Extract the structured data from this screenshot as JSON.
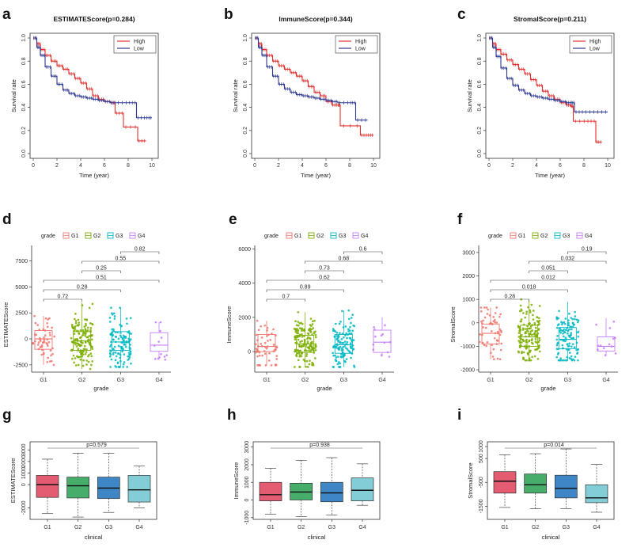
{
  "colors": {
    "high": "#e0312f",
    "low": "#2f3a93",
    "G1": "#f0766e",
    "G2": "#7cae00",
    "G3": "#00b8c4",
    "G4": "#c77cff",
    "g_G1": "#e35c72",
    "g_G2": "#46ad6a",
    "g_G3": "#3f86c6",
    "g_G4": "#82cdd6"
  },
  "chart_data": [
    {
      "panel": "a",
      "type": "line",
      "title": "ESTIMATEScore(p=0.284)",
      "xlabel": "Time (year)",
      "ylabel": "Survival rate",
      "xlim": [
        0,
        10
      ],
      "ylim": [
        0,
        1.0
      ],
      "xticks": [
        "0",
        "2",
        "4",
        "6",
        "8",
        "10"
      ],
      "yticks": [
        "0.0",
        "0.2",
        "0.4",
        "0.6",
        "0.8",
        "1.0"
      ],
      "legend": [
        "High",
        "Low"
      ],
      "series": [
        {
          "name": "High",
          "x": [
            0,
            0.3,
            0.6,
            1,
            1.5,
            2,
            2.5,
            3,
            3.5,
            4,
            4.5,
            5,
            5.5,
            6,
            6.5,
            6.9,
            7.6,
            8.8,
            9.5
          ],
          "y": [
            1,
            0.95,
            0.9,
            0.85,
            0.8,
            0.76,
            0.73,
            0.69,
            0.65,
            0.61,
            0.56,
            0.5,
            0.47,
            0.45,
            0.44,
            0.35,
            0.23,
            0.11,
            0.11
          ]
        },
        {
          "name": "Low",
          "x": [
            0,
            0.3,
            0.6,
            1,
            1.5,
            2,
            2.5,
            3,
            3.5,
            4,
            4.5,
            5,
            5.5,
            6,
            6.5,
            7,
            8,
            8.7,
            9.5,
            10
          ],
          "y": [
            1,
            0.92,
            0.85,
            0.75,
            0.67,
            0.6,
            0.55,
            0.52,
            0.5,
            0.49,
            0.48,
            0.47,
            0.46,
            0.45,
            0.44,
            0.44,
            0.44,
            0.31,
            0.31,
            0.31
          ]
        }
      ]
    },
    {
      "panel": "b",
      "type": "line",
      "title": "ImmuneScore(p=0.344)",
      "xlabel": "Time (year)",
      "ylabel": "Survival rate",
      "xlim": [
        0,
        10
      ],
      "ylim": [
        0,
        1.0
      ],
      "xticks": [
        "0",
        "2",
        "4",
        "6",
        "8",
        "10"
      ],
      "yticks": [
        "0.0",
        "0.2",
        "0.4",
        "0.6",
        "0.8",
        "1.0"
      ],
      "legend": [
        "High",
        "Low"
      ],
      "series": [
        {
          "name": "High",
          "x": [
            0,
            0.3,
            0.6,
            1,
            1.5,
            2,
            2.5,
            3,
            3.5,
            4,
            4.5,
            5,
            5.5,
            6,
            6.5,
            7,
            7.2,
            8.9,
            9.5,
            10
          ],
          "y": [
            1,
            0.95,
            0.9,
            0.85,
            0.8,
            0.76,
            0.73,
            0.7,
            0.67,
            0.63,
            0.58,
            0.53,
            0.5,
            0.45,
            0.42,
            0.42,
            0.24,
            0.16,
            0.16,
            0.16
          ]
        },
        {
          "name": "Low",
          "x": [
            0,
            0.3,
            0.6,
            1,
            1.5,
            2,
            2.5,
            3,
            3.5,
            4,
            4.5,
            5,
            5.5,
            6,
            6.5,
            7,
            8,
            8.5,
            9.5
          ],
          "y": [
            1,
            0.92,
            0.85,
            0.75,
            0.67,
            0.6,
            0.56,
            0.53,
            0.51,
            0.5,
            0.49,
            0.48,
            0.47,
            0.46,
            0.45,
            0.44,
            0.44,
            0.29,
            0.29
          ]
        }
      ]
    },
    {
      "panel": "c",
      "type": "line",
      "title": "StromalScore(p=0.211)",
      "xlabel": "Time (year)",
      "ylabel": "Survival rate",
      "xlim": [
        0,
        10
      ],
      "ylim": [
        0,
        1.0
      ],
      "xticks": [
        "0",
        "2",
        "4",
        "6",
        "8",
        "10"
      ],
      "yticks": [
        "0.0",
        "0.2",
        "0.4",
        "0.6",
        "0.8",
        "1.0"
      ],
      "legend": [
        "High",
        "Low"
      ],
      "series": [
        {
          "name": "High",
          "x": [
            0,
            0.3,
            0.6,
            1,
            1.5,
            2,
            2.5,
            3,
            3.5,
            4,
            4.5,
            5,
            5.5,
            6,
            6.5,
            6.9,
            7.1,
            8.2,
            9,
            9.5
          ],
          "y": [
            1,
            0.95,
            0.9,
            0.86,
            0.81,
            0.77,
            0.73,
            0.69,
            0.64,
            0.59,
            0.54,
            0.5,
            0.47,
            0.44,
            0.42,
            0.41,
            0.28,
            0.28,
            0.1,
            0.1
          ]
        },
        {
          "name": "Low",
          "x": [
            0,
            0.3,
            0.6,
            1,
            1.5,
            2,
            2.5,
            3,
            3.5,
            4,
            4.5,
            5,
            5.5,
            6,
            6.5,
            6.9,
            7.2,
            8,
            9,
            10
          ],
          "y": [
            1,
            0.92,
            0.84,
            0.74,
            0.65,
            0.59,
            0.55,
            0.52,
            0.5,
            0.49,
            0.48,
            0.47,
            0.46,
            0.45,
            0.44,
            0.44,
            0.36,
            0.36,
            0.36,
            0.36
          ]
        }
      ]
    },
    {
      "panel": "d",
      "type": "box",
      "legend_title": "grade",
      "legend": [
        "G1",
        "G2",
        "G3",
        "G4"
      ],
      "categories": [
        "G1",
        "G2",
        "G3",
        "G4"
      ],
      "xlabel": "grade",
      "ylabel": "ESTIMATEScore",
      "ylim": [
        -3200,
        9000
      ],
      "yticks": [
        -2500,
        0,
        2500,
        5000,
        7500
      ],
      "ytick_labels": [
        "-2500",
        "0",
        "2500",
        "5000",
        "7500"
      ],
      "boxes": [
        {
          "q1": -1000,
          "median": 0,
          "q3": 800,
          "lo": -2500,
          "hi": 2200,
          "n": 55
        },
        {
          "q1": -1100,
          "median": -200,
          "q3": 700,
          "lo": -2900,
          "hi": 3500,
          "n": 150
        },
        {
          "q1": -1100,
          "median": -300,
          "q3": 700,
          "lo": -2700,
          "hi": 3000,
          "n": 120
        },
        {
          "q1": -1200,
          "median": -600,
          "q3": 600,
          "lo": -2000,
          "hi": 1600,
          "n": 13
        }
      ],
      "comparisons": [
        {
          "from": "G1",
          "to": "G2",
          "label": "0.72"
        },
        {
          "from": "G1",
          "to": "G3",
          "label": "0.28"
        },
        {
          "from": "G1",
          "to": "G4",
          "label": "0.51"
        },
        {
          "from": "G2",
          "to": "G3",
          "label": "0.25"
        },
        {
          "from": "G2",
          "to": "G4",
          "label": "0.55"
        },
        {
          "from": "G3",
          "to": "G4",
          "label": "0.82"
        }
      ]
    },
    {
      "panel": "e",
      "type": "box",
      "legend_title": "grade",
      "legend": [
        "G1",
        "G2",
        "G3",
        "G4"
      ],
      "categories": [
        "G1",
        "G2",
        "G3",
        "G4"
      ],
      "xlabel": "grade",
      "ylabel": "ImmuneScore",
      "ylim": [
        -1200,
        6200
      ],
      "yticks": [
        0,
        2000,
        4000,
        6000
      ],
      "ytick_labels": [
        "0",
        "2000",
        "4000",
        "6000"
      ],
      "boxes": [
        {
          "q1": 0,
          "median": 300,
          "q3": 1000,
          "lo": -800,
          "hi": 1800,
          "n": 55
        },
        {
          "q1": -50,
          "median": 450,
          "q3": 950,
          "lo": -900,
          "hi": 2300,
          "n": 150
        },
        {
          "q1": -100,
          "median": 400,
          "q3": 1000,
          "lo": -900,
          "hi": 2400,
          "n": 120
        },
        {
          "q1": -50,
          "median": 550,
          "q3": 1250,
          "lo": -300,
          "hi": 2000,
          "n": 13
        }
      ],
      "comparisons": [
        {
          "from": "G1",
          "to": "G2",
          "label": "0.7"
        },
        {
          "from": "G1",
          "to": "G3",
          "label": "0.89"
        },
        {
          "from": "G1",
          "to": "G4",
          "label": "0.62"
        },
        {
          "from": "G2",
          "to": "G3",
          "label": "0.73"
        },
        {
          "from": "G2",
          "to": "G4",
          "label": "0.68"
        },
        {
          "from": "G3",
          "to": "G4",
          "label": "0.6"
        }
      ]
    },
    {
      "panel": "f",
      "type": "box",
      "legend_title": "grade",
      "legend": [
        "G1",
        "G2",
        "G3",
        "G4"
      ],
      "categories": [
        "G1",
        "G2",
        "G3",
        "G4"
      ],
      "xlabel": "grade",
      "ylabel": "StromalScore",
      "ylim": [
        -2100,
        3300
      ],
      "yticks": [
        -2000,
        -1000,
        0,
        1000,
        2000,
        3000
      ],
      "ytick_labels": [
        "-2000",
        "-1000",
        "0",
        "1000",
        "2000",
        "3000"
      ],
      "boxes": [
        {
          "q1": -900,
          "median": -450,
          "q3": -50,
          "lo": -1550,
          "hi": 650,
          "n": 55
        },
        {
          "q1": -1000,
          "median": -600,
          "q3": -100,
          "lo": -1600,
          "hi": 1000,
          "n": 150
        },
        {
          "q1": -1100,
          "median": -700,
          "q3": -200,
          "lo": -1600,
          "hi": 900,
          "n": 120
        },
        {
          "q1": -1200,
          "median": -1000,
          "q3": -600,
          "lo": -1400,
          "hi": 200,
          "n": 13
        }
      ],
      "comparisons": [
        {
          "from": "G1",
          "to": "G2",
          "label": "0.28"
        },
        {
          "from": "G1",
          "to": "G3",
          "label": "0.018"
        },
        {
          "from": "G1",
          "to": "G4",
          "label": "0.012"
        },
        {
          "from": "G2",
          "to": "G3",
          "label": "0.051"
        },
        {
          "from": "G2",
          "to": "G4",
          "label": "0.032"
        },
        {
          "from": "G3",
          "to": "G4",
          "label": "0.19"
        }
      ]
    },
    {
      "panel": "g",
      "type": "box",
      "categories": [
        "G1",
        "G2",
        "G3",
        "G4"
      ],
      "xlabel": "clinical",
      "ylabel": "ESTIMATEScore",
      "ylim": [
        -3000,
        3700
      ],
      "yticks": [
        -2000,
        0,
        1000,
        2000,
        3000
      ],
      "ytick_labels": [
        "-2000",
        "0",
        "1000",
        "2000",
        "3000"
      ],
      "boxes": [
        {
          "q1": -1100,
          "median": 0,
          "q3": 800,
          "lo": -2500,
          "hi": 2200
        },
        {
          "q1": -1150,
          "median": -100,
          "q3": 650,
          "lo": -2800,
          "hi": 2700
        },
        {
          "q1": -1200,
          "median": -300,
          "q3": 650,
          "lo": -2400,
          "hi": 2700
        },
        {
          "q1": -1500,
          "median": -450,
          "q3": 800,
          "lo": -2000,
          "hi": 1600
        }
      ],
      "pvalue": "p=0.579"
    },
    {
      "panel": "h",
      "type": "box",
      "categories": [
        "G1",
        "G2",
        "G3",
        "G4"
      ],
      "xlabel": "clinical",
      "ylabel": "ImmuneScore",
      "ylim": [
        -1100,
        3300
      ],
      "yticks": [
        -1000,
        0,
        1000,
        2000,
        3000
      ],
      "ytick_labels": [
        "-1000",
        "0",
        "1000",
        "2000",
        "3000"
      ],
      "boxes": [
        {
          "q1": -50,
          "median": 300,
          "q3": 1000,
          "lo": -800,
          "hi": 1800
        },
        {
          "q1": 0,
          "median": 450,
          "q3": 950,
          "lo": -950,
          "hi": 2250
        },
        {
          "q1": -100,
          "median": 400,
          "q3": 1000,
          "lo": -850,
          "hi": 2400
        },
        {
          "q1": -50,
          "median": 550,
          "q3": 1250,
          "lo": -300,
          "hi": 2050
        }
      ],
      "pvalue": "p=0.938"
    },
    {
      "panel": "i",
      "type": "box",
      "categories": [
        "G1",
        "G2",
        "G3",
        "G4"
      ],
      "xlabel": "clinical",
      "ylabel": "StromalScore",
      "ylim": [
        -2050,
        1200
      ],
      "yticks": [
        -1500,
        -500,
        500,
        1000
      ],
      "ytick_labels": [
        "-1500",
        "-500",
        "500",
        "1000"
      ],
      "boxes": [
        {
          "q1": -950,
          "median": -450,
          "q3": -50,
          "lo": -1550,
          "hi": 650
        },
        {
          "q1": -950,
          "median": -600,
          "q3": -150,
          "lo": -1600,
          "hi": 700
        },
        {
          "q1": -1150,
          "median": -750,
          "q3": -200,
          "lo": -1600,
          "hi": 900
        },
        {
          "q1": -1350,
          "median": -1150,
          "q3": -600,
          "lo": -1750,
          "hi": 250
        }
      ],
      "pvalue": "p=0.014"
    }
  ]
}
